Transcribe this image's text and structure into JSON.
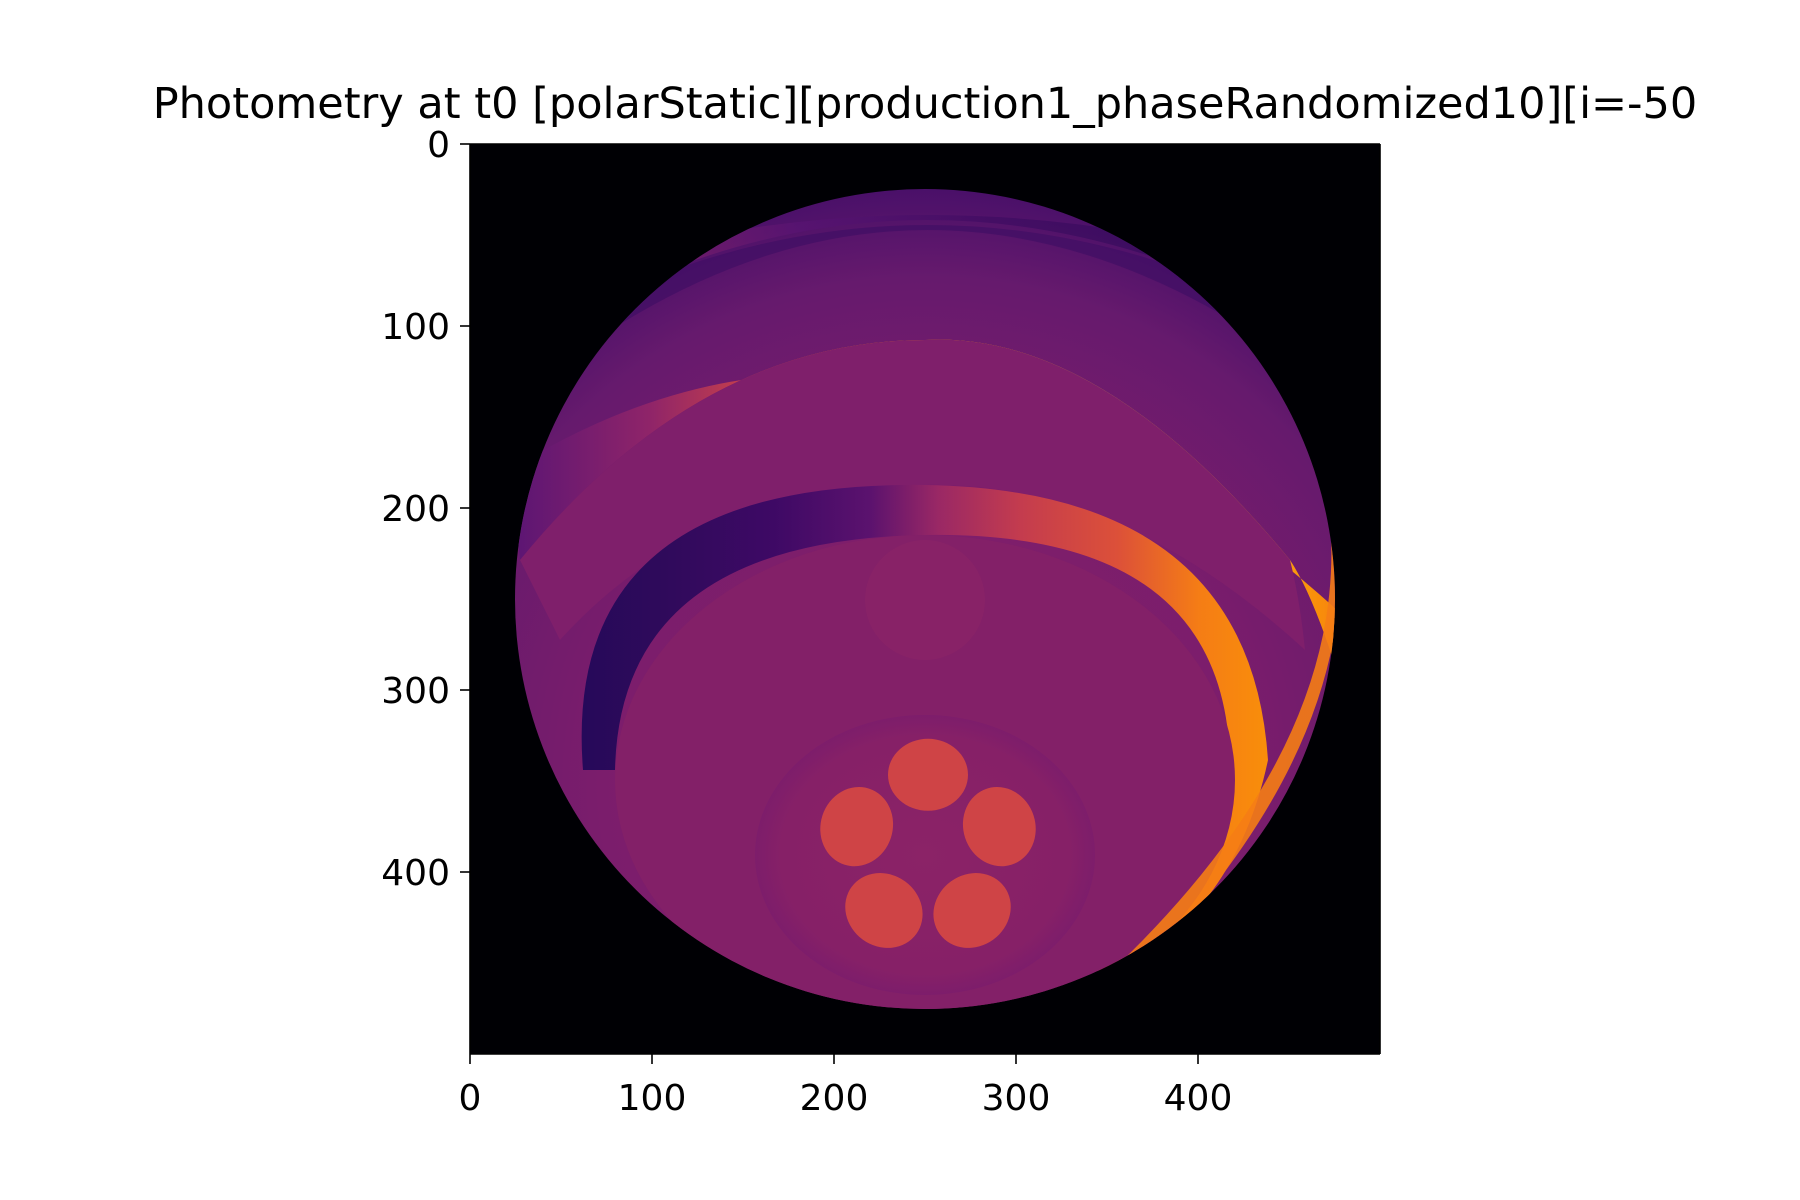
{
  "chart_data": {
    "type": "heatmap",
    "title": "Photometry at t0 [polarStatic][production1_phaseRandomized10][i=-50",
    "xlabel": "",
    "ylabel": "",
    "xlim": [
      0,
      500
    ],
    "ylim": [
      500,
      0
    ],
    "y_axis_inverted": true,
    "x_ticks": [
      0,
      100,
      200,
      300,
      400
    ],
    "y_ticks": [
      0,
      100,
      200,
      300,
      400
    ],
    "x_tick_labels": [
      "0",
      "100",
      "200",
      "300",
      "400"
    ],
    "y_tick_labels": [
      "0",
      "100",
      "200",
      "300",
      "400"
    ],
    "grid": false,
    "colormap": "inferno",
    "image_extent": [
      0,
      500,
      0,
      500
    ],
    "background_value_color": "#000004",
    "sphere": {
      "center": [
        250,
        250
      ],
      "radius": 225
    },
    "bright_band": {
      "center_row": 130,
      "peak_column": 320,
      "peak_color": "#f8d13a"
    },
    "inner_ring": {
      "center": [
        250,
        340
      ],
      "dark_side": "left",
      "bright_side": "right"
    },
    "spots": {
      "count": 5,
      "center": [
        250,
        390
      ],
      "color": "#cf4446"
    }
  }
}
